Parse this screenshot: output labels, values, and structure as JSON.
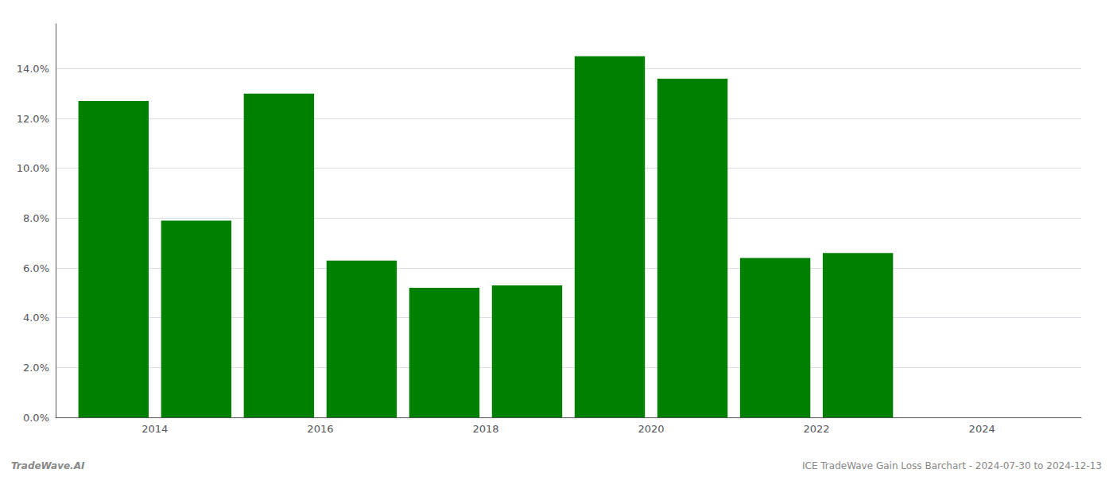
{
  "chart_data": {
    "type": "bar",
    "x": [
      2013,
      2014,
      2015,
      2016,
      2017,
      2018,
      2019,
      2020,
      2021,
      2022
    ],
    "values": [
      0.127,
      0.079,
      0.13,
      0.063,
      0.052,
      0.053,
      0.145,
      0.136,
      0.064,
      0.066
    ],
    "color": "#008000",
    "xlim": [
      2012.3,
      2024.7
    ],
    "xticks": [
      {
        "value": 2013.5,
        "label": "2014"
      },
      {
        "value": 2015.5,
        "label": "2016"
      },
      {
        "value": 2017.5,
        "label": "2018"
      },
      {
        "value": 2019.5,
        "label": "2020"
      },
      {
        "value": 2021.5,
        "label": "2022"
      },
      {
        "value": 2023.5,
        "label": "2024"
      }
    ],
    "ylim": [
      0.0,
      0.158
    ],
    "yticks": [
      {
        "value": 0.0,
        "label": "0.0%"
      },
      {
        "value": 0.02,
        "label": "2.0%"
      },
      {
        "value": 0.04,
        "label": "4.0%"
      },
      {
        "value": 0.06,
        "label": "6.0%"
      },
      {
        "value": 0.08,
        "label": "8.0%"
      },
      {
        "value": 0.1,
        "label": "10.0%"
      },
      {
        "value": 0.12,
        "label": "12.0%"
      },
      {
        "value": 0.14,
        "label": "14.0%"
      }
    ],
    "grid": true,
    "annotations": [
      "TradeWave.AI",
      "ICE TradeWave Gain Loss Barchart - 2024-07-30 to 2024-12-13"
    ]
  }
}
